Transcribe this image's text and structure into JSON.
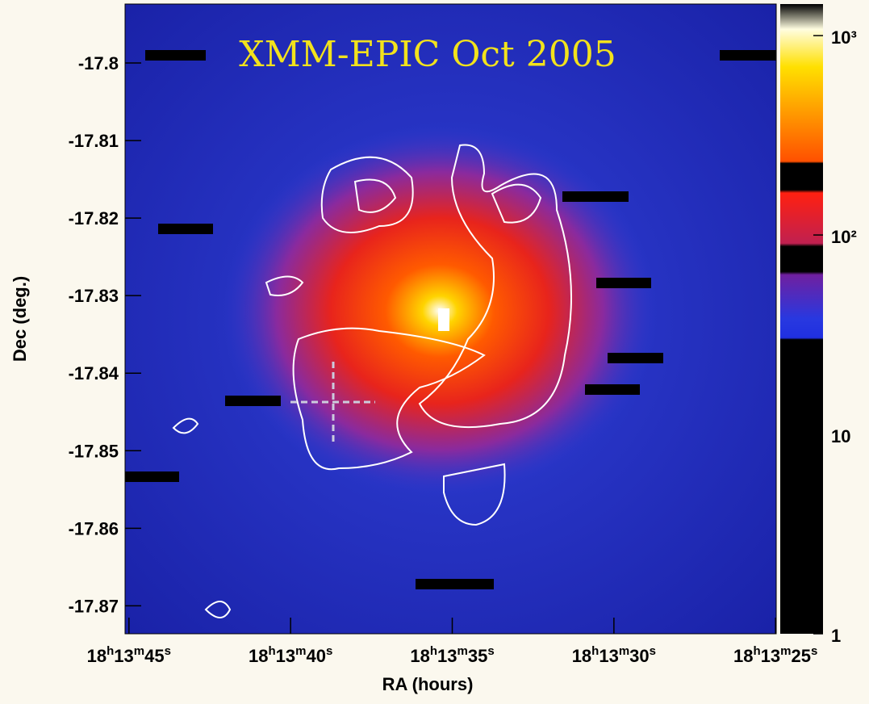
{
  "chart_data": {
    "type": "image",
    "annotation": "XMM-EPIC  Oct 2005",
    "x_label": "RA (hours)",
    "y_label": "Dec (deg.)",
    "xlim": [
      45.12,
      24.98
    ],
    "xticks": [
      {
        "value": 45,
        "label": "18h13m45s"
      },
      {
        "value": 40,
        "label": "18h13m40s"
      },
      {
        "value": 35,
        "label": "18h13m35s"
      },
      {
        "value": 30,
        "label": "18h13m30s"
      },
      {
        "value": 25,
        "label": "18h13m25s"
      }
    ],
    "ylim": [
      -17.8736,
      -17.7924
    ],
    "yticks": [
      -17.8,
      -17.81,
      -17.82,
      -17.83,
      -17.84,
      -17.85,
      -17.86,
      -17.87
    ],
    "colorbar": {
      "log": true,
      "lim": [
        1,
        1440
      ],
      "ticks": [
        1,
        10,
        {
          "value": 100,
          "label": "10²"
        },
        {
          "value": 1000,
          "label": "10³"
        }
      ]
    }
  }
}
